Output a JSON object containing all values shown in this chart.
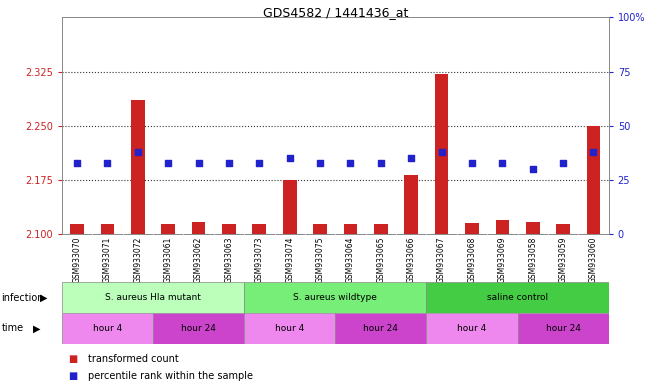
{
  "title": "GDS4582 / 1441436_at",
  "samples": [
    "GSM933070",
    "GSM933071",
    "GSM933072",
    "GSM933061",
    "GSM933062",
    "GSM933063",
    "GSM933073",
    "GSM933074",
    "GSM933075",
    "GSM933064",
    "GSM933065",
    "GSM933066",
    "GSM933067",
    "GSM933068",
    "GSM933069",
    "GSM933058",
    "GSM933059",
    "GSM933060"
  ],
  "bar_values": [
    2.114,
    2.114,
    2.285,
    2.114,
    2.117,
    2.114,
    2.114,
    2.175,
    2.114,
    2.114,
    2.114,
    2.182,
    2.322,
    2.115,
    2.12,
    2.117,
    2.114,
    2.249
  ],
  "dot_values": [
    33,
    33,
    38,
    33,
    33,
    33,
    33,
    35,
    33,
    33,
    33,
    35,
    38,
    33,
    33,
    30,
    33,
    38
  ],
  "ylim_left": [
    2.1,
    2.4
  ],
  "ylim_right": [
    0,
    100
  ],
  "yticks_left": [
    2.1,
    2.175,
    2.25,
    2.325
  ],
  "yticks_right": [
    0,
    25,
    50,
    75,
    100
  ],
  "hlines": [
    2.175,
    2.25,
    2.325
  ],
  "bar_color": "#cc2222",
  "dot_color": "#2222cc",
  "bar_bottom": 2.1,
  "groups": [
    {
      "label": "S. aureus Hla mutant",
      "start": 0,
      "end": 5,
      "color": "#bbffbb"
    },
    {
      "label": "S. aureus wildtype",
      "start": 6,
      "end": 11,
      "color": "#77ee77"
    },
    {
      "label": "saline control",
      "start": 12,
      "end": 17,
      "color": "#44cc44"
    }
  ],
  "time_groups": [
    {
      "label": "hour 4",
      "start": 0,
      "end": 2,
      "color": "#ee88ee"
    },
    {
      "label": "hour 24",
      "start": 3,
      "end": 5,
      "color": "#cc44cc"
    },
    {
      "label": "hour 4",
      "start": 6,
      "end": 8,
      "color": "#ee88ee"
    },
    {
      "label": "hour 24",
      "start": 9,
      "end": 11,
      "color": "#cc44cc"
    },
    {
      "label": "hour 4",
      "start": 12,
      "end": 14,
      "color": "#ee88ee"
    },
    {
      "label": "hour 24",
      "start": 15,
      "end": 17,
      "color": "#cc44cc"
    }
  ],
  "infection_label": "infection",
  "time_label": "time",
  "legend_items": [
    {
      "label": "transformed count",
      "color": "#cc2222"
    },
    {
      "label": "percentile rank within the sample",
      "color": "#2222cc"
    }
  ],
  "bg_color": "#ffffff",
  "xticklabel_bg": "#cccccc",
  "spine_color": "#888888",
  "dotted_line_color": "#333333"
}
